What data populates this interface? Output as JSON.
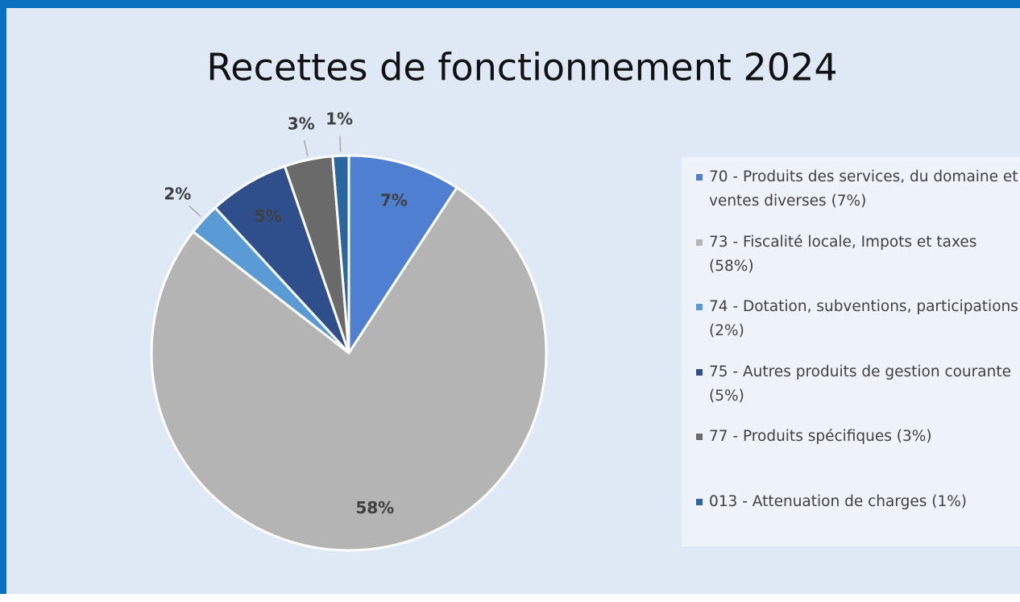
{
  "chart_data": {
    "type": "pie",
    "title": "Recettes de fonctionnement 2024",
    "categories": [
      "70 - Produits des services, du domaine et ventes diverses (7%)",
      "73 - Fiscalité locale, Impots et taxes (58%)",
      "74 - Dotation, subventions, participations (2%)",
      "75 - Autres produits de gestion courante (5%)",
      "77 - Produits spécifiques (3%)",
      "013 - Attenuation de charges (1%)"
    ],
    "values": [
      7,
      58,
      2,
      5,
      3,
      1
    ],
    "value_labels": [
      "7%",
      "58%",
      "2%",
      "5%",
      "3%",
      "1%"
    ],
    "colors": [
      "#4f7fd0",
      "#b4b4b4",
      "#5b9bd5",
      "#2e4f8c",
      "#6a6a6a",
      "#2a66a0"
    ],
    "legend": "right"
  }
}
